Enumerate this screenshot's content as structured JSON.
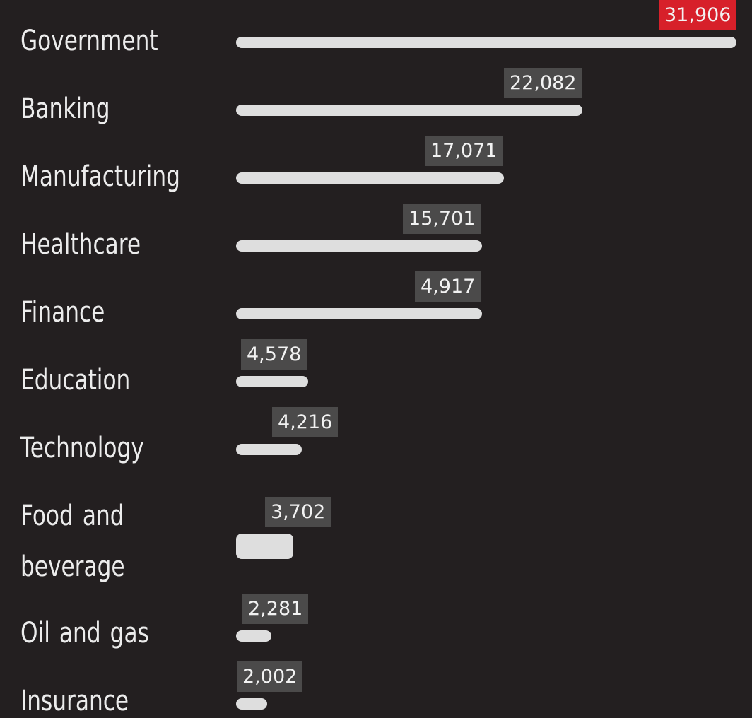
{
  "chart_data": {
    "type": "bar",
    "orientation": "horizontal",
    "categories": [
      "Government",
      "Banking",
      "Manufacturing",
      "Healthcare",
      "Finance",
      "Education",
      "Technology",
      "Food and beverage",
      "Oil and gas",
      "Insurance"
    ],
    "values": [
      31906,
      22082,
      17071,
      15701,
      4917,
      4578,
      4216,
      3702,
      2281,
      2002
    ],
    "value_labels": [
      "31,906",
      "22,082",
      "17,071",
      "15,701",
      "4,917",
      "4,578",
      "4,216",
      "3,702",
      "2,281",
      "2,002"
    ],
    "highlight_index": 0,
    "title": "",
    "xlabel": "",
    "ylabel": "",
    "grid": false,
    "legend": "none"
  },
  "colors": {
    "background": "#231f20",
    "bar": "#dedede",
    "label_text": "#ececec",
    "value_tag": "#4b4a4a",
    "value_tag_highlight": "#d7202a",
    "value_text": "#f2f2f2"
  }
}
